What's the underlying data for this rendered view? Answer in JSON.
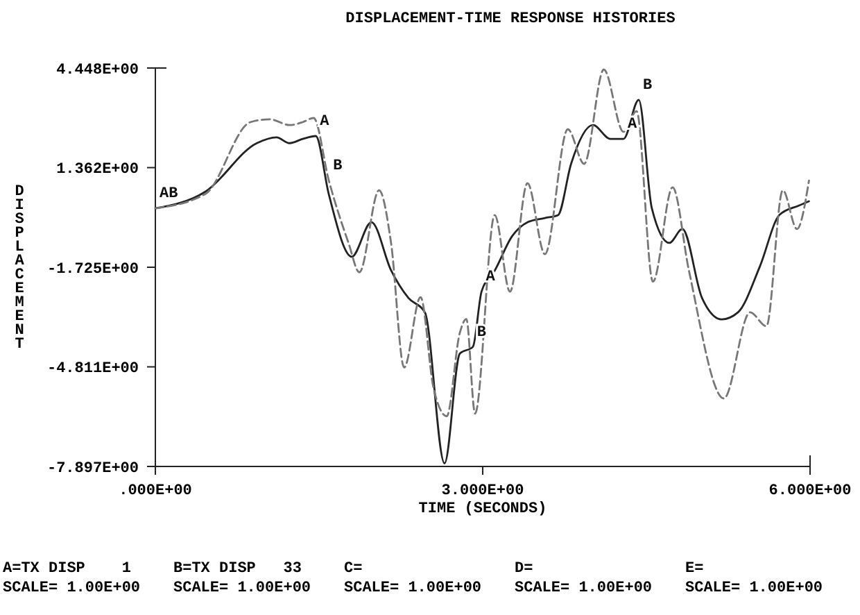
{
  "chart_data": {
    "type": "line",
    "title": "DISPLACEMENT-TIME RESPONSE HISTORIES",
    "xlabel": "TIME (SECONDS)",
    "ylabel": "DISPLACEMENT",
    "xlim": [
      0,
      6
    ],
    "xticks": [
      {
        "value": 0,
        "label": ".000E+00"
      },
      {
        "value": 3,
        "label": "3.000E+00"
      },
      {
        "value": 6,
        "label": "6.000E+00"
      }
    ],
    "ylim": [
      -7.897,
      4.448
    ],
    "yticks": [
      {
        "value": 4.448,
        "label": "4.448E+00"
      },
      {
        "value": 1.362,
        "label": "1.362E+00"
      },
      {
        "value": -1.725,
        "label": "-1.725E+00"
      },
      {
        "value": -4.811,
        "label": "-4.811E+00"
      },
      {
        "value": -7.897,
        "label": "-7.897E+00"
      }
    ],
    "grid": false,
    "marker": "none",
    "series": [
      {
        "color": "#222222",
        "line_style": "solid",
        "x": [
          0,
          0.46,
          0.93,
          1.11,
          1.23,
          1.35,
          1.47,
          1.59,
          1.8,
          1.98,
          2.16,
          2.32,
          2.47,
          2.65,
          2.79,
          2.91,
          2.99,
          3.11,
          3.27,
          3.41,
          3.57,
          3.69,
          3.81,
          4.01,
          4.17,
          4.29,
          4.43,
          4.55,
          4.71,
          4.83,
          5.01,
          5.19,
          5.34,
          5.54,
          5.72,
          5.9,
          5.99
        ],
        "values": [
          0.1,
          0.62,
          2.12,
          2.3,
          2.12,
          2.25,
          2.34,
          0.53,
          -1.4,
          -0.33,
          -1.82,
          -2.68,
          -3.12,
          -7.8,
          -4.4,
          -4.19,
          -2.47,
          -1.83,
          -0.76,
          -0.33,
          -0.2,
          -0.11,
          1.48,
          2.68,
          2.25,
          2.25,
          3.46,
          0.1,
          -0.97,
          -0.54,
          -2.68,
          -3.34,
          -3.12,
          -1.7,
          -0.1,
          0.19,
          0.32
        ]
      },
      {
        "color": "#777777",
        "line_style": "dashed",
        "x": [
          0,
          0.46,
          0.87,
          1.05,
          1.23,
          1.35,
          1.45,
          1.59,
          1.77,
          1.87,
          2.05,
          2.16,
          2.28,
          2.43,
          2.55,
          2.67,
          2.79,
          2.85,
          2.93,
          3.11,
          3.25,
          3.41,
          3.57,
          3.78,
          3.93,
          4.11,
          4.29,
          4.41,
          4.56,
          4.74,
          4.89,
          5.21,
          5.45,
          5.6,
          5.75,
          5.88,
          5.99
        ],
        "values": [
          0.1,
          0.55,
          2.77,
          2.86,
          2.68,
          2.77,
          2.9,
          0.96,
          -0.97,
          -1.88,
          0.66,
          -0.97,
          -4.83,
          -2.65,
          -5.48,
          -6.34,
          -3.76,
          -3.33,
          -6.26,
          -0.11,
          -2.48,
          0.88,
          -1.32,
          2.55,
          1.48,
          4.4,
          2.47,
          3.11,
          -2.17,
          0.75,
          -1.83,
          -5.79,
          -3.12,
          -3.55,
          0.66,
          -0.54,
          0.96
        ]
      }
    ],
    "annotations": [
      {
        "text": "AB",
        "x": 0,
        "y": 0.1
      },
      {
        "text": "A",
        "x": 1.47,
        "y": 2.34
      },
      {
        "text": "B",
        "x": 1.59,
        "y": 0.96
      },
      {
        "text": "A",
        "x": 2.99,
        "y": -2.47
      },
      {
        "text": "B",
        "x": 2.91,
        "y": -4.19
      },
      {
        "text": "A",
        "x": 4.29,
        "y": 2.25
      },
      {
        "text": "B",
        "x": 4.43,
        "y": 3.46
      },
      "A=TX DISP    1",
      "B=TX DISP   33",
      "C=",
      "D=",
      "E=",
      "SCALE= 1.00E+00",
      "SCALE= 1.00E+00",
      "SCALE= 1.00E+00",
      "SCALE= 1.00E+00",
      "SCALE= 1.00E+00"
    ]
  }
}
